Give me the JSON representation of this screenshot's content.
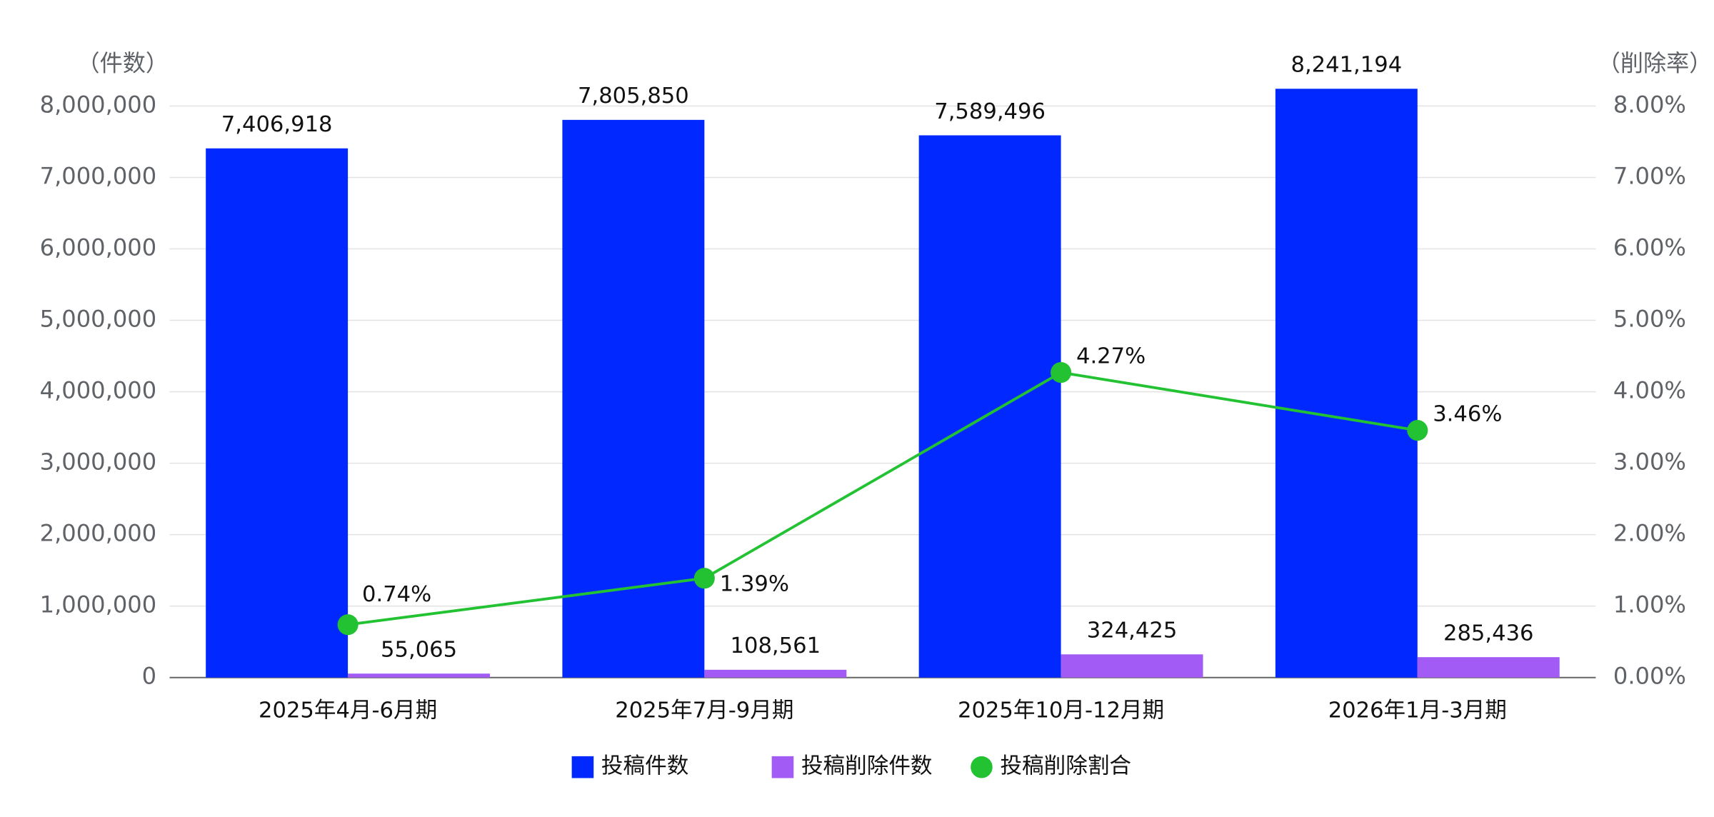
{
  "chart_data": {
    "type": "bar",
    "y_axis_label": "（件数）",
    "y2_axis_label": "（削除率）",
    "categories": [
      "2025年4月-6月期",
      "2025年7月-9月期",
      "2025年10月-12月期",
      "2026年1月-3月期"
    ],
    "series": [
      {
        "name": "投稿件数",
        "type": "bar",
        "color": "#0028ff",
        "values": [
          7406918,
          7805850,
          7589496,
          8241194
        ],
        "value_labels": [
          "7,406,918",
          "7,805,850",
          "7,589,496",
          "8,241,194"
        ]
      },
      {
        "name": "投稿削除件数",
        "type": "bar",
        "color": "#a25bf5",
        "values": [
          55065,
          108561,
          324425,
          285436
        ],
        "value_labels": [
          "55,065",
          "108,561",
          "324,425",
          "285,436"
        ]
      },
      {
        "name": "投稿削除割合",
        "type": "line",
        "axis": "y2",
        "color": "#22c232",
        "values": [
          0.74,
          1.39,
          4.27,
          3.46
        ],
        "value_labels": [
          "0.74%",
          "1.39%",
          "4.27%",
          "3.46%"
        ]
      }
    ],
    "ylim": [
      0,
      8000000
    ],
    "yticks": [
      0,
      {
        "value": 1000000,
        "label": "1,000,000"
      },
      {
        "value": 2000000,
        "label": "2,000,000"
      },
      {
        "value": 3000000,
        "label": "3,000,000"
      },
      {
        "value": 4000000,
        "label": "4,000,000"
      },
      {
        "value": 5000000,
        "label": "5,000,000"
      },
      {
        "value": 6000000,
        "label": "6,000,000"
      },
      {
        "value": 7000000,
        "label": "7,000,000"
      },
      {
        "value": 8000000,
        "label": "8,000,000"
      }
    ],
    "y2lim": [
      0,
      8
    ],
    "y2ticks": [
      {
        "value": 0,
        "label": "0.00%"
      },
      {
        "value": 1,
        "label": "1.00%"
      },
      {
        "value": 2,
        "label": "2.00%"
      },
      {
        "value": 3,
        "label": "3.00%"
      },
      {
        "value": 4,
        "label": "4.00%"
      },
      {
        "value": 5,
        "label": "5.00%"
      },
      {
        "value": 6,
        "label": "6.00%"
      },
      {
        "value": 7,
        "label": "7.00%"
      },
      {
        "value": 8,
        "label": "8.00%"
      }
    ],
    "grid": true,
    "legend": "bottom"
  }
}
